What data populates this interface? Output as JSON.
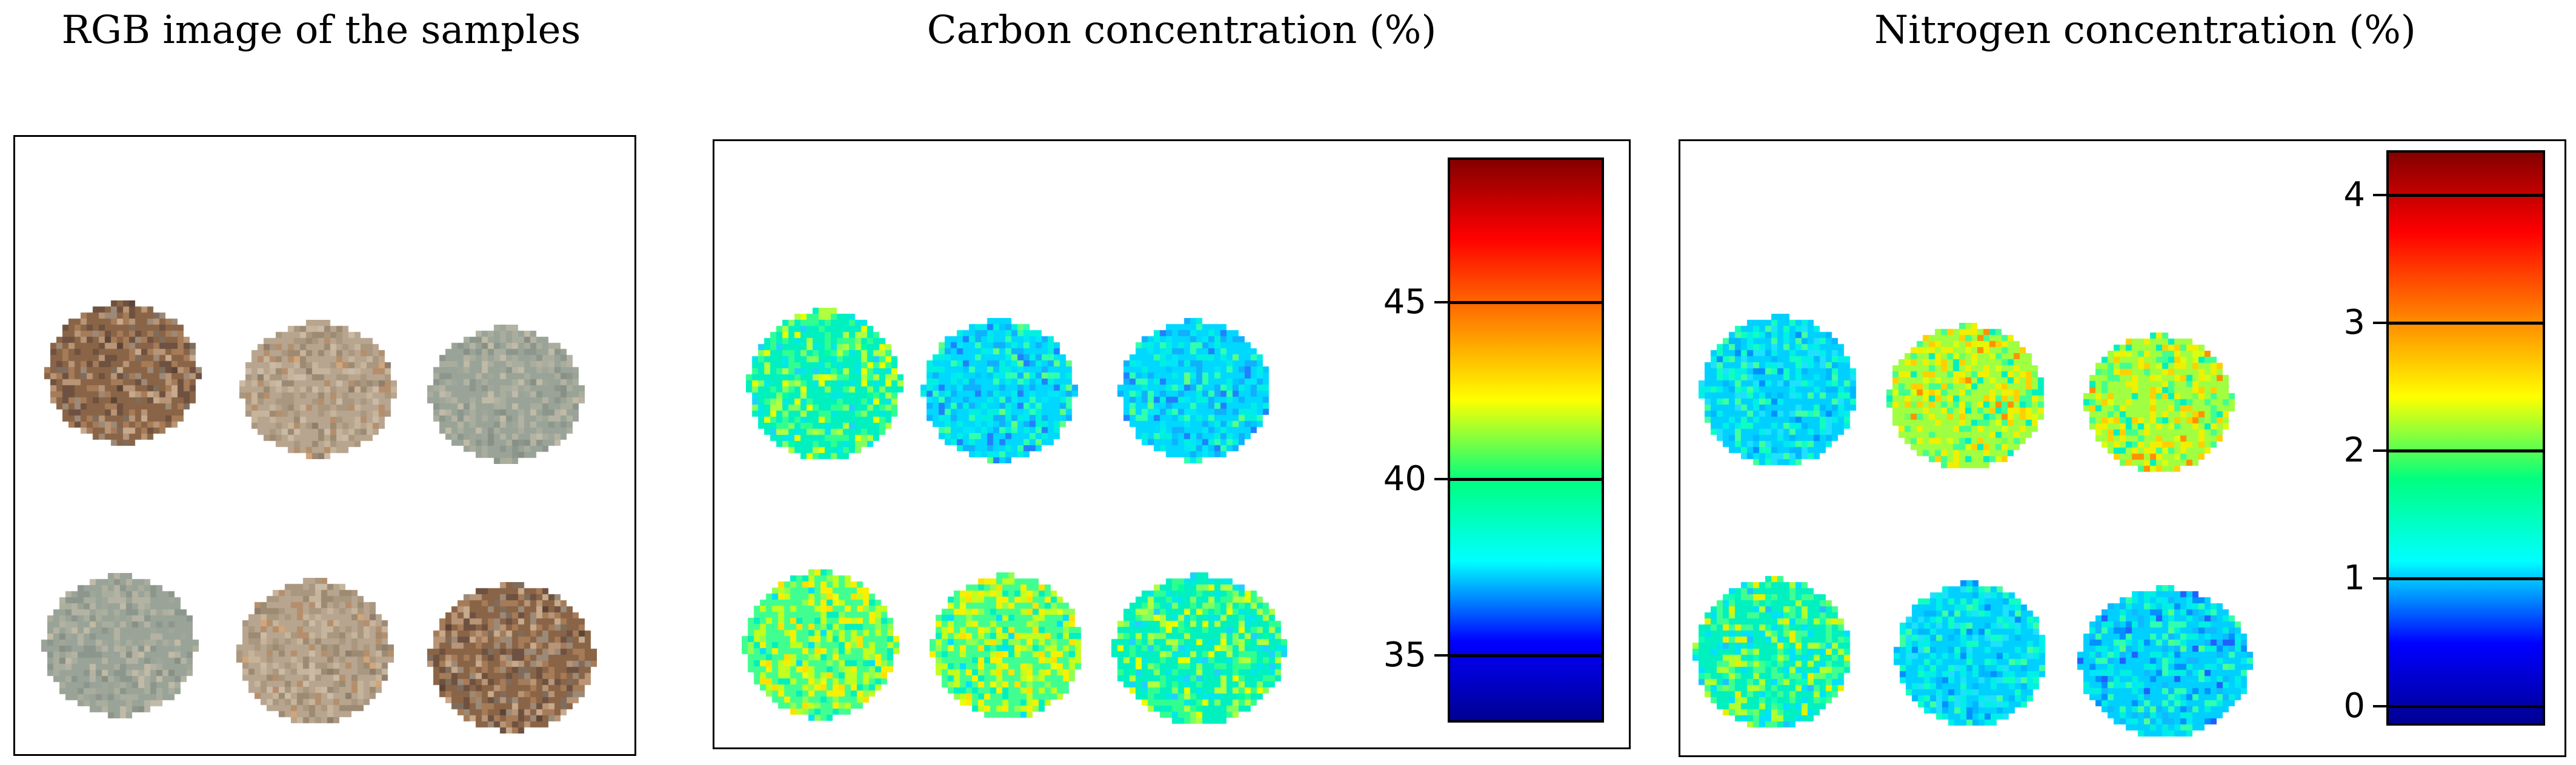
{
  "panels": [
    {
      "title": "RGB image of the samples",
      "kind": "rgb"
    },
    {
      "title": "Carbon concentration (%)",
      "kind": "map",
      "colorbar": {
        "min": 33.1,
        "max": 49.1,
        "ticks": [
          "45",
          "40",
          "35"
        ],
        "tick_values": [
          45,
          40,
          35
        ]
      }
    },
    {
      "title": "Nitrogen concentration (%)",
      "kind": "map",
      "colorbar": {
        "min": -0.15,
        "max": 4.35,
        "ticks": [
          "4",
          "3",
          "2",
          "1",
          "0"
        ],
        "tick_values": [
          4,
          3,
          2,
          1,
          0
        ]
      }
    }
  ],
  "colors": {
    "jet": [
      "#00008f",
      "#0000ff",
      "#00ffff",
      "#00ff80",
      "#ffff00",
      "#ff8000",
      "#ff0000",
      "#800000"
    ]
  }
}
